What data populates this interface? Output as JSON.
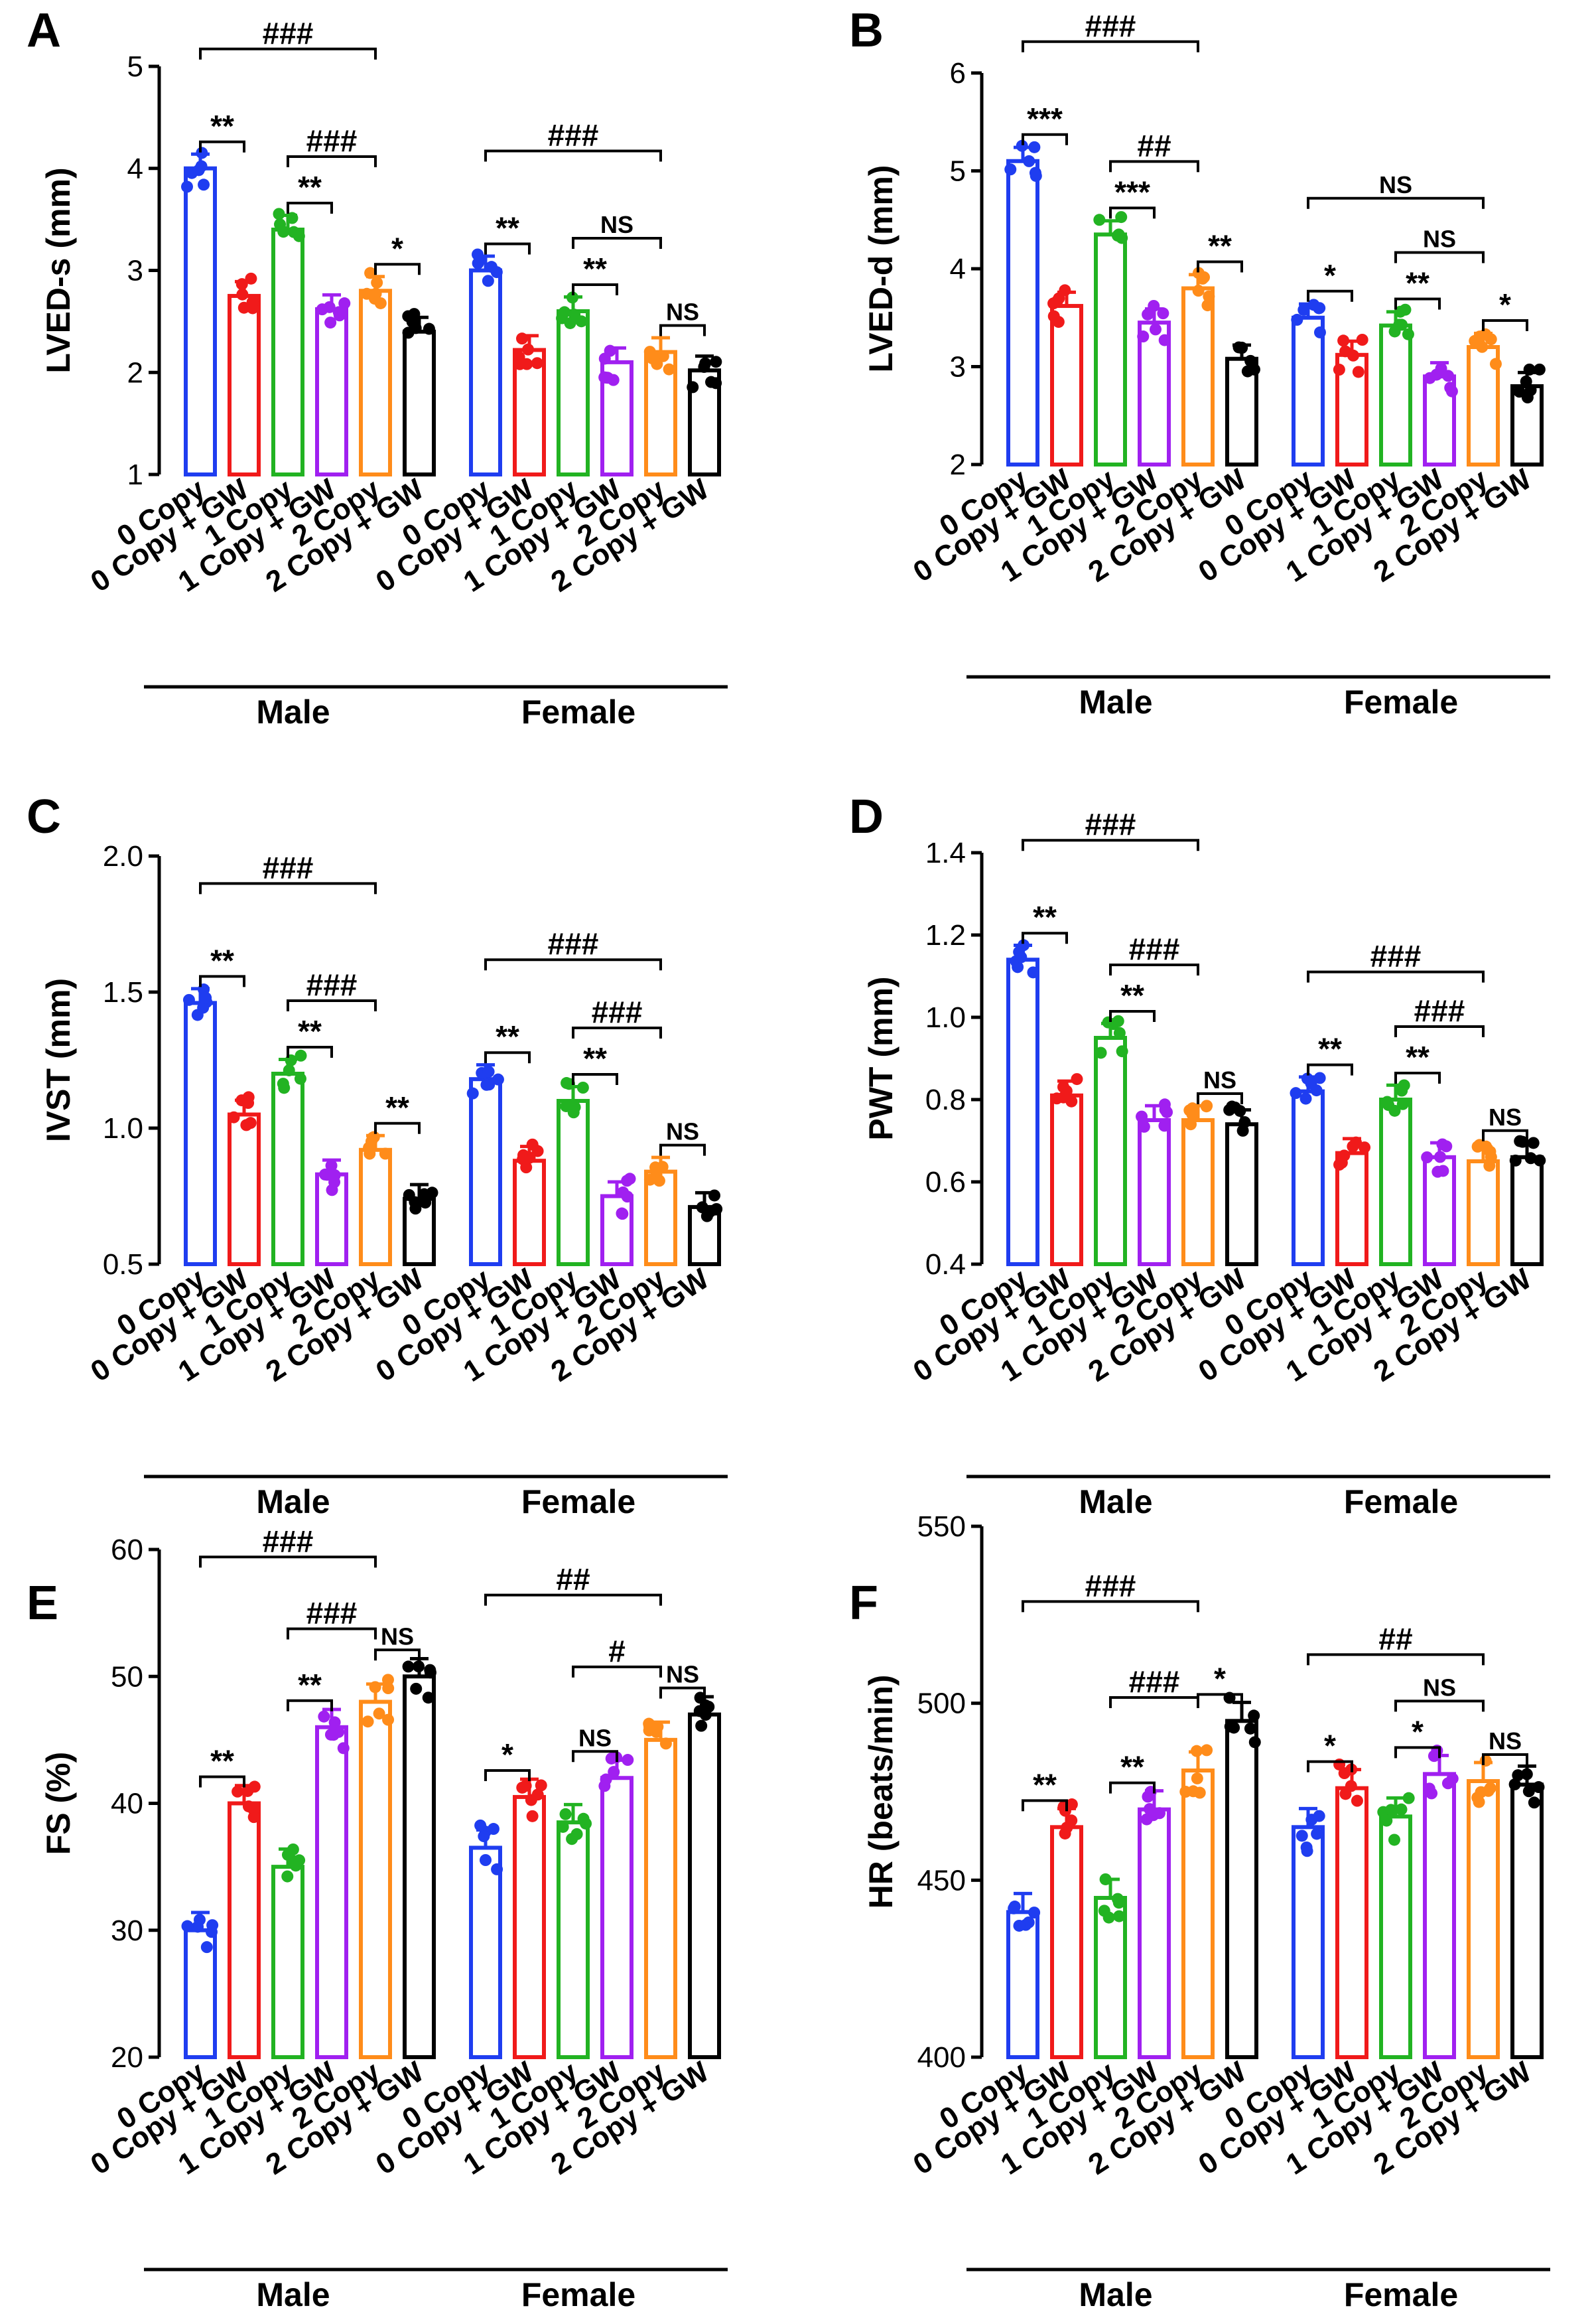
{
  "figure": {
    "group_colors": [
      "#1f3df0",
      "#f01a1a",
      "#22b322",
      "#a020f0",
      "#ff8c1a",
      "#000000"
    ],
    "panels": [
      {
        "letter": "A",
        "chart_data": {
          "type": "bar",
          "ylabel": "LVED-s (mm)",
          "xlabel": "",
          "ylim": [
            1,
            5
          ],
          "yticks": [
            "1",
            "2",
            "3",
            "4",
            "5"
          ],
          "categories": [
            "0 Copy",
            "0 Copy + GW",
            "1 Copy",
            "1 Copy + GW",
            "2 Copy",
            "2 Copy + GW"
          ],
          "groups": [
            "Male",
            "Female"
          ],
          "series": [
            {
              "name": "Male",
              "values": [
                4.0,
                2.75,
                3.4,
                2.62,
                2.8,
                2.4
              ]
            },
            {
              "name": "Female",
              "values": [
                3.0,
                2.22,
                2.6,
                2.1,
                2.2,
                2.02
              ]
            }
          ],
          "annotations": [
            {
              "group": 0,
              "from": 0,
              "to": 1,
              "level": 0,
              "label": "**"
            },
            {
              "group": 0,
              "from": 2,
              "to": 3,
              "level": 0,
              "label": "**"
            },
            {
              "group": 0,
              "from": 4,
              "to": 5,
              "level": 0,
              "label": "*"
            },
            {
              "group": 0,
              "from": 2,
              "to": 4,
              "level": 1,
              "label": "###"
            },
            {
              "group": 0,
              "from": 0,
              "to": 4,
              "level": 2,
              "label": "###"
            },
            {
              "group": 1,
              "from": 0,
              "to": 1,
              "level": 0,
              "label": "**"
            },
            {
              "group": 1,
              "from": 2,
              "to": 3,
              "level": 0,
              "label": "**"
            },
            {
              "group": 1,
              "from": 4,
              "to": 5,
              "level": 0,
              "label": "NS"
            },
            {
              "group": 1,
              "from": 2,
              "to": 4,
              "level": 1,
              "label": "NS"
            },
            {
              "group": 1,
              "from": 0,
              "to": 4,
              "level": 2,
              "label": "###"
            }
          ]
        }
      },
      {
        "letter": "B",
        "chart_data": {
          "type": "bar",
          "ylabel": "LVED-d (mm)",
          "xlabel": "",
          "ylim": [
            2,
            6
          ],
          "yticks": [
            "2",
            "3",
            "4",
            "5",
            "6"
          ],
          "categories": [
            "0 Copy",
            "0 Copy + GW",
            "1 Copy",
            "1 Copy + GW",
            "2 Copy",
            "2 Copy + GW"
          ],
          "groups": [
            "Male",
            "Female"
          ],
          "series": [
            {
              "name": "Male",
              "values": [
                5.1,
                3.62,
                4.35,
                3.45,
                3.8,
                3.08
              ]
            },
            {
              "name": "Female",
              "values": [
                3.5,
                3.12,
                3.42,
                2.9,
                3.2,
                2.8
              ]
            }
          ],
          "annotations": [
            {
              "group": 0,
              "from": 0,
              "to": 1,
              "level": 0,
              "label": "***"
            },
            {
              "group": 0,
              "from": 2,
              "to": 3,
              "level": 0,
              "label": "***"
            },
            {
              "group": 0,
              "from": 4,
              "to": 5,
              "level": 0,
              "label": "**"
            },
            {
              "group": 0,
              "from": 2,
              "to": 4,
              "level": 1,
              "label": "##"
            },
            {
              "group": 0,
              "from": 0,
              "to": 4,
              "level": 2,
              "label": "###"
            },
            {
              "group": 1,
              "from": 0,
              "to": 1,
              "level": 0,
              "label": "*"
            },
            {
              "group": 1,
              "from": 2,
              "to": 3,
              "level": 0,
              "label": "**"
            },
            {
              "group": 1,
              "from": 4,
              "to": 5,
              "level": 0,
              "label": "*"
            },
            {
              "group": 1,
              "from": 2,
              "to": 4,
              "level": 1,
              "label": "NS"
            },
            {
              "group": 1,
              "from": 0,
              "to": 4,
              "level": 2,
              "label": "NS"
            }
          ]
        }
      },
      {
        "letter": "C",
        "chart_data": {
          "type": "bar",
          "ylabel": "IVST (mm)",
          "xlabel": "",
          "ylim": [
            0.5,
            2.0
          ],
          "yticks": [
            "0.5",
            "1.0",
            "1.5",
            "2.0"
          ],
          "categories": [
            "0 Copy",
            "0 Copy + GW",
            "1 Copy",
            "1 Copy + GW",
            "2 Copy",
            "2 Copy + GW"
          ],
          "groups": [
            "Male",
            "Female"
          ],
          "series": [
            {
              "name": "Male",
              "values": [
                1.46,
                1.05,
                1.2,
                0.83,
                0.92,
                0.74
              ]
            },
            {
              "name": "Female",
              "values": [
                1.18,
                0.88,
                1.1,
                0.75,
                0.84,
                0.71
              ]
            }
          ],
          "annotations": [
            {
              "group": 0,
              "from": 0,
              "to": 1,
              "level": 0,
              "label": "**"
            },
            {
              "group": 0,
              "from": 2,
              "to": 3,
              "level": 0,
              "label": "**"
            },
            {
              "group": 0,
              "from": 4,
              "to": 5,
              "level": 0,
              "label": "**"
            },
            {
              "group": 0,
              "from": 2,
              "to": 4,
              "level": 1,
              "label": "###"
            },
            {
              "group": 0,
              "from": 0,
              "to": 4,
              "level": 2,
              "label": "###"
            },
            {
              "group": 1,
              "from": 0,
              "to": 1,
              "level": 0,
              "label": "**"
            },
            {
              "group": 1,
              "from": 2,
              "to": 3,
              "level": 0,
              "label": "**"
            },
            {
              "group": 1,
              "from": 4,
              "to": 5,
              "level": 0,
              "label": "NS"
            },
            {
              "group": 1,
              "from": 2,
              "to": 4,
              "level": 1,
              "label": "###"
            },
            {
              "group": 1,
              "from": 0,
              "to": 4,
              "level": 2,
              "label": "###"
            }
          ]
        }
      },
      {
        "letter": "D",
        "chart_data": {
          "type": "bar",
          "ylabel": "PWT (mm)",
          "xlabel": "",
          "ylim": [
            0.4,
            1.4
          ],
          "yticks": [
            "0.4",
            "0.6",
            "0.8",
            "1.0",
            "1.2",
            "1.4"
          ],
          "categories": [
            "0 Copy",
            "0 Copy + GW",
            "1 Copy",
            "1 Copy + GW",
            "2 Copy",
            "2 Copy + GW"
          ],
          "groups": [
            "Male",
            "Female"
          ],
          "series": [
            {
              "name": "Male",
              "values": [
                1.14,
                0.81,
                0.95,
                0.75,
                0.75,
                0.74
              ]
            },
            {
              "name": "Female",
              "values": [
                0.82,
                0.67,
                0.8,
                0.66,
                0.65,
                0.66
              ]
            }
          ],
          "annotations": [
            {
              "group": 0,
              "from": 0,
              "to": 1,
              "level": 0,
              "label": "**"
            },
            {
              "group": 0,
              "from": 2,
              "to": 3,
              "level": 0,
              "label": "**"
            },
            {
              "group": 0,
              "from": 4,
              "to": 5,
              "level": 0,
              "label": "NS"
            },
            {
              "group": 0,
              "from": 2,
              "to": 4,
              "level": 1,
              "label": "###"
            },
            {
              "group": 0,
              "from": 0,
              "to": 4,
              "level": 2,
              "label": "###"
            },
            {
              "group": 1,
              "from": 0,
              "to": 1,
              "level": 0,
              "label": "**"
            },
            {
              "group": 1,
              "from": 2,
              "to": 3,
              "level": 0,
              "label": "**"
            },
            {
              "group": 1,
              "from": 4,
              "to": 5,
              "level": 0,
              "label": "NS"
            },
            {
              "group": 1,
              "from": 2,
              "to": 4,
              "level": 1,
              "label": "###"
            },
            {
              "group": 1,
              "from": 0,
              "to": 4,
              "level": 2,
              "label": "###"
            }
          ]
        }
      },
      {
        "letter": "E",
        "chart_data": {
          "type": "bar",
          "ylabel": "FS (%)",
          "xlabel": "",
          "ylim": [
            20,
            60
          ],
          "yticks": [
            "20",
            "30",
            "40",
            "50",
            "60"
          ],
          "categories": [
            "0 Copy",
            "0 Copy + GW",
            "1 Copy",
            "1 Copy + GW",
            "2 Copy",
            "2 Copy + GW"
          ],
          "groups": [
            "Male",
            "Female"
          ],
          "series": [
            {
              "name": "Male",
              "values": [
                30,
                40,
                35,
                46,
                48,
                50
              ]
            },
            {
              "name": "Female",
              "values": [
                36.5,
                40.5,
                38.5,
                42,
                45,
                47
              ]
            }
          ],
          "annotations": [
            {
              "group": 0,
              "from": 0,
              "to": 1,
              "level": 0,
              "label": "**"
            },
            {
              "group": 0,
              "from": 2,
              "to": 3,
              "level": 0,
              "label": "**"
            },
            {
              "group": 0,
              "from": 4,
              "to": 5,
              "level": 0,
              "label": "NS"
            },
            {
              "group": 0,
              "from": 2,
              "to": 4,
              "level": 1,
              "label": "###"
            },
            {
              "group": 0,
              "from": 0,
              "to": 4,
              "level": 2,
              "label": "###"
            },
            {
              "group": 1,
              "from": 0,
              "to": 1,
              "level": 0,
              "label": "*"
            },
            {
              "group": 1,
              "from": 2,
              "to": 3,
              "level": 0,
              "label": "NS"
            },
            {
              "group": 1,
              "from": 4,
              "to": 5,
              "level": 0,
              "label": "NS"
            },
            {
              "group": 1,
              "from": 2,
              "to": 4,
              "level": 1,
              "label": "#"
            },
            {
              "group": 1,
              "from": 0,
              "to": 4,
              "level": 2,
              "label": "##"
            }
          ]
        }
      },
      {
        "letter": "F",
        "chart_data": {
          "type": "bar",
          "ylabel": "HR (beats/min)",
          "xlabel": "",
          "ylim": [
            400,
            550
          ],
          "yticks": [
            "400",
            "450",
            "500",
            "550"
          ],
          "categories": [
            "0 Copy",
            "0 Copy + GW",
            "1 Copy",
            "1 Copy + GW",
            "2 Copy",
            "2 Copy + GW"
          ],
          "groups": [
            "Male",
            "Female"
          ],
          "series": [
            {
              "name": "Male",
              "values": [
                441,
                465,
                445,
                470,
                481,
                495
              ]
            },
            {
              "name": "Female",
              "values": [
                465,
                476,
                468,
                480,
                478,
                477
              ]
            }
          ],
          "annotations": [
            {
              "group": 0,
              "from": 0,
              "to": 1,
              "level": 0,
              "label": "**"
            },
            {
              "group": 0,
              "from": 2,
              "to": 3,
              "level": 0,
              "label": "**"
            },
            {
              "group": 0,
              "from": 4,
              "to": 5,
              "level": 0,
              "label": "*"
            },
            {
              "group": 0,
              "from": 2,
              "to": 4,
              "level": 1,
              "label": "###"
            },
            {
              "group": 0,
              "from": 0,
              "to": 4,
              "level": 2,
              "label": "###"
            },
            {
              "group": 1,
              "from": 0,
              "to": 1,
              "level": 0,
              "label": "*"
            },
            {
              "group": 1,
              "from": 2,
              "to": 3,
              "level": 0,
              "label": "*"
            },
            {
              "group": 1,
              "from": 4,
              "to": 5,
              "level": 0,
              "label": "NS"
            },
            {
              "group": 1,
              "from": 2,
              "to": 4,
              "level": 1,
              "label": "NS"
            },
            {
              "group": 1,
              "from": 0,
              "to": 4,
              "level": 2,
              "label": "##"
            }
          ]
        }
      }
    ]
  }
}
